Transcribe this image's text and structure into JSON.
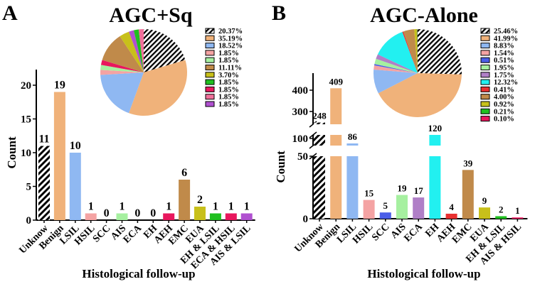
{
  "chart_data": [
    {
      "panel": "A",
      "type": "bar",
      "title": "AGC+Sq",
      "xlabel": "Histological follow-up",
      "ylabel": "Count",
      "ylim": [
        0,
        22
      ],
      "yticks": [
        0,
        5,
        10,
        15,
        20
      ],
      "categories": [
        "Unknow",
        "Benign",
        "LSIL",
        "HSIL",
        "SCC",
        "AIS",
        "ECA",
        "EH",
        "AEH",
        "EMC",
        "EUA",
        "EH & LSIL",
        "ECA & HSIL",
        "AIS & LSIL"
      ],
      "values": [
        11,
        19,
        10,
        1,
        0,
        1,
        0,
        0,
        1,
        6,
        2,
        1,
        1,
        1
      ],
      "colors": [
        "hatch",
        "#f0b27a",
        "#8fb8f2",
        "#f4a3a3",
        "#4b5ee8",
        "#a6f0a0",
        "#b07fc7",
        "#22f0f0",
        "#e8175d",
        "#c08a4a",
        "#c8c01a",
        "#1fbf1f",
        "#e8175d",
        "#b050d0"
      ],
      "pie": {
        "type": "pie",
        "slices": [
          {
            "value": 20.37,
            "label": "20.37%",
            "color": "hatch"
          },
          {
            "value": 35.19,
            "label": "35.19%",
            "color": "#f0b27a"
          },
          {
            "value": 18.52,
            "label": "18.52%",
            "color": "#8fb8f2"
          },
          {
            "value": 1.85,
            "label": "1.85%",
            "color": "#f4a3a3"
          },
          {
            "value": 1.85,
            "label": "1.85%",
            "color": "#a6f0a0"
          },
          {
            "value": 1.85,
            "label": "1.85%",
            "color": "#e8175d"
          },
          {
            "value": 11.11,
            "label": "11.11%",
            "color": "#c08a4a"
          },
          {
            "value": 3.7,
            "label": "3.70%",
            "color": "#c8c01a"
          },
          {
            "value": 1.85,
            "label": "1.85%",
            "color": "#b050d0"
          },
          {
            "value": 1.85,
            "label": "1.85%",
            "color": "#1fbf1f"
          },
          {
            "value": 1.85,
            "label": "1.85%",
            "color": "#f0709a"
          }
        ],
        "legend": [
          {
            "label": "20.37%",
            "color": "hatch"
          },
          {
            "label": "35.19%",
            "color": "#f0b27a"
          },
          {
            "label": "18.52%",
            "color": "#8fb8f2"
          },
          {
            "label": "1.85%",
            "color": "#f4a3a3"
          },
          {
            "label": "1.85%",
            "color": "#a6f0a0"
          },
          {
            "label": "11.11%",
            "color": "#c08a4a"
          },
          {
            "label": "3.70%",
            "color": "#c8c01a"
          },
          {
            "label": "1.85%",
            "color": "#1fbf1f"
          },
          {
            "label": "1.85%",
            "color": "#e8175d"
          },
          {
            "label": "1.85%",
            "color": "#f0709a"
          },
          {
            "label": "1.85%",
            "color": "#b050d0"
          }
        ],
        "legend_position": "right"
      }
    },
    {
      "panel": "B",
      "type": "bar",
      "title": "AGC-Alone",
      "xlabel": "Histological follow-up",
      "ylabel": "Count",
      "broken_axis": true,
      "yticks": [
        0,
        50,
        100,
        300,
        400
      ],
      "categories": [
        "Unknow",
        "Benign",
        "LSIL",
        "HSIL",
        "SCC",
        "AIS",
        "ECA",
        "EH",
        "AEH",
        "EMC",
        "EUA",
        "EH & LSIL",
        "AIS & HSIL"
      ],
      "values": [
        248,
        409,
        86,
        15,
        5,
        19,
        17,
        120,
        4,
        39,
        9,
        2,
        1
      ],
      "colors": [
        "hatch",
        "#f0b27a",
        "#8fb8f2",
        "#f4a3a3",
        "#4b5ee8",
        "#a6f0a0",
        "#b07fc7",
        "#22f0f0",
        "#e83030",
        "#c08a4a",
        "#c8c01a",
        "#1fbf1f",
        "#e8175d"
      ],
      "pie": {
        "type": "pie",
        "slices": [
          {
            "value": 25.46,
            "label": "25.46%",
            "color": "hatch"
          },
          {
            "value": 41.99,
            "label": "41.99%",
            "color": "#f0b27a"
          },
          {
            "value": 8.83,
            "label": "8.83%",
            "color": "#8fb8f2"
          },
          {
            "value": 1.54,
            "label": "1.54%",
            "color": "#f4a3a3"
          },
          {
            "value": 0.51,
            "label": "0.51%",
            "color": "#4b5ee8"
          },
          {
            "value": 1.95,
            "label": "1.95%",
            "color": "#a6f0a0"
          },
          {
            "value": 1.75,
            "label": "1.75%",
            "color": "#b07fc7"
          },
          {
            "value": 12.32,
            "label": "12.32%",
            "color": "#22f0f0"
          },
          {
            "value": 0.41,
            "label": "0.41%",
            "color": "#e83030"
          },
          {
            "value": 4.0,
            "label": "4.00%",
            "color": "#c08a4a"
          },
          {
            "value": 0.92,
            "label": "0.92%",
            "color": "#c8c01a"
          },
          {
            "value": 0.21,
            "label": "0.21%",
            "color": "#1fbf1f"
          },
          {
            "value": 0.1,
            "label": "0.10%",
            "color": "#e8175d"
          }
        ],
        "legend": [
          {
            "label": "25.46%",
            "color": "hatch"
          },
          {
            "label": "41.99%",
            "color": "#f0b27a"
          },
          {
            "label": "8.83%",
            "color": "#8fb8f2"
          },
          {
            "label": "1.54%",
            "color": "#f4a3a3"
          },
          {
            "label": "0.51%",
            "color": "#4b5ee8"
          },
          {
            "label": "1.95%",
            "color": "#a6f0a0"
          },
          {
            "label": "1.75%",
            "color": "#b07fc7"
          },
          {
            "label": "12.32%",
            "color": "#22f0f0"
          },
          {
            "label": "0.41%",
            "color": "#e83030"
          },
          {
            "label": "4.00%",
            "color": "#c08a4a"
          },
          {
            "label": "0.92%",
            "color": "#c8c01a"
          },
          {
            "label": "0.21%",
            "color": "#1fbf1f"
          },
          {
            "label": "0.10%",
            "color": "#e8175d"
          }
        ],
        "legend_position": "right"
      }
    }
  ]
}
